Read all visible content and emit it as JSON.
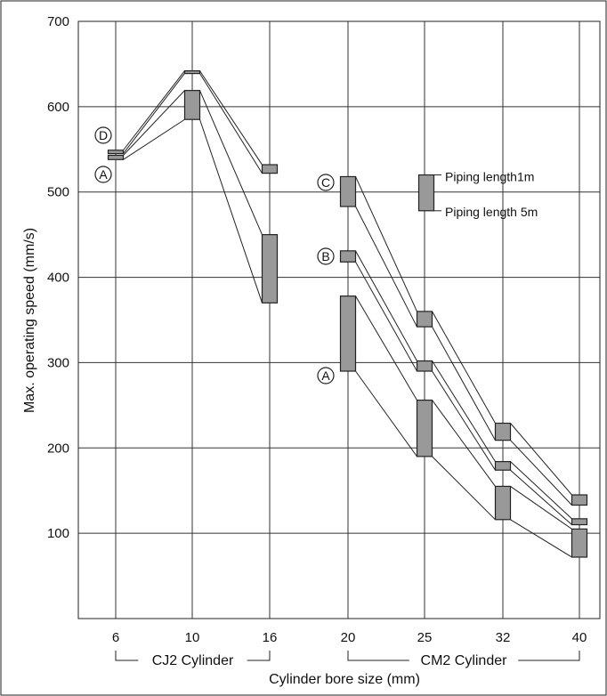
{
  "chart_data": {
    "type": "line",
    "ylabel": "Max.  operating speed  (mm/s)",
    "xlabel": "Cylinder bore size (mm)",
    "ylim": [
      0,
      700
    ],
    "yticks": [
      100,
      200,
      300,
      400,
      500,
      600,
      700
    ],
    "categories": [
      "6",
      "10",
      "16",
      "20",
      "25",
      "32",
      "40"
    ],
    "grid": true,
    "group_labels": [
      {
        "text": "CJ2 Cylinder",
        "from": "6",
        "to": "16"
      },
      {
        "text": "CM2 Cylinder",
        "from": "20",
        "to": "40"
      }
    ],
    "series": [
      {
        "label": "D",
        "color": "#999999",
        "points": [
          {
            "x": "6",
            "top": 549,
            "bottom": 545
          },
          {
            "x": "10",
            "top": 642,
            "bottom": 639
          },
          {
            "x": "16",
            "top": 532,
            "bottom": 522
          }
        ]
      },
      {
        "label": "A",
        "color": "#999999",
        "points": [
          {
            "x": "6",
            "top": 543,
            "bottom": 538
          },
          {
            "x": "10",
            "top": 619,
            "bottom": 585
          },
          {
            "x": "16",
            "top": 450,
            "bottom": 370
          }
        ]
      },
      {
        "label": "C",
        "color": "#999999",
        "points": [
          {
            "x": "20",
            "top": 518,
            "bottom": 483
          },
          {
            "x": "25",
            "top": 360,
            "bottom": 342
          },
          {
            "x": "32",
            "top": 229,
            "bottom": 209
          },
          {
            "x": "40",
            "top": 145,
            "bottom": 133
          }
        ]
      },
      {
        "label": "B",
        "color": "#999999",
        "points": [
          {
            "x": "20",
            "top": 431,
            "bottom": 418
          },
          {
            "x": "25",
            "top": 302,
            "bottom": 290
          },
          {
            "x": "32",
            "top": 184,
            "bottom": 174
          },
          {
            "x": "40",
            "top": 117,
            "bottom": 110
          }
        ]
      },
      {
        "label": "A",
        "color": "#999999",
        "points": [
          {
            "x": "20",
            "top": 378,
            "bottom": 290
          },
          {
            "x": "25",
            "top": 256,
            "bottom": 190
          },
          {
            "x": "32",
            "top": 155,
            "bottom": 116
          },
          {
            "x": "40",
            "top": 105,
            "bottom": 72
          }
        ]
      }
    ],
    "legend": {
      "items": [
        "Piping length1m",
        "Piping length 5m"
      ],
      "position": "top-right",
      "value_range": [
        520,
        478
      ]
    }
  }
}
